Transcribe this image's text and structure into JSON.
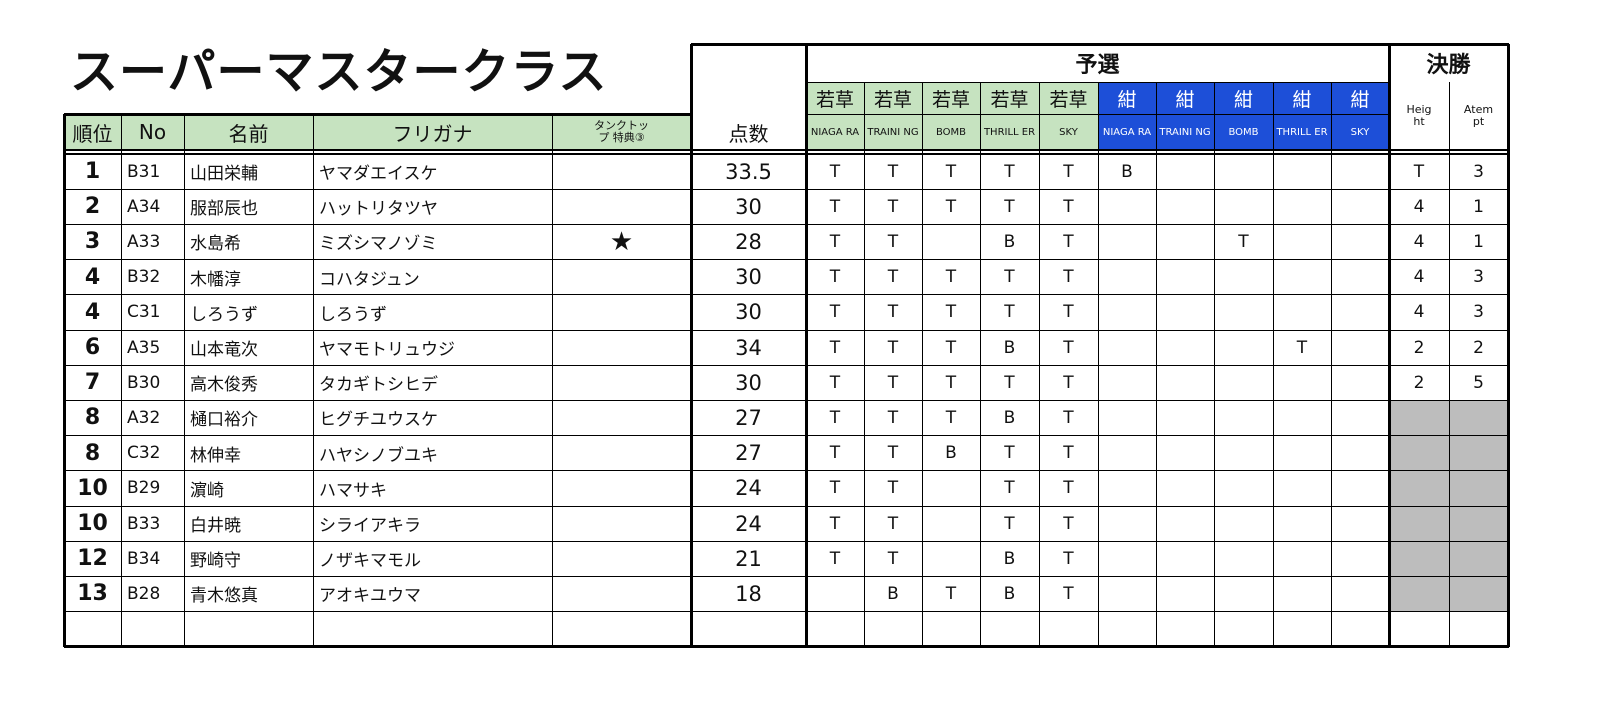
{
  "title": "スーパーマスタークラス",
  "headers": {
    "prelim": "予選",
    "final": "決勝",
    "rank": "順位",
    "no": "No",
    "name": "名前",
    "furigana": "フリガナ",
    "bonus": "タンクトップ 特典③",
    "score": "点数",
    "height": "Heig ht",
    "attempt": "Atem pt"
  },
  "categories": [
    {
      "label": "若草",
      "sub": "NIAGA RA",
      "color": "green"
    },
    {
      "label": "若草",
      "sub": "TRAINI NG",
      "color": "green"
    },
    {
      "label": "若草",
      "sub": "BOMB",
      "color": "green"
    },
    {
      "label": "若草",
      "sub": "THRILL ER",
      "color": "green"
    },
    {
      "label": "若草",
      "sub": "SKY",
      "color": "green"
    },
    {
      "label": "紺",
      "sub": "NIAGA RA",
      "color": "blue"
    },
    {
      "label": "紺",
      "sub": "TRAINI NG",
      "color": "blue"
    },
    {
      "label": "紺",
      "sub": "BOMB",
      "color": "blue"
    },
    {
      "label": "紺",
      "sub": "THRILL ER",
      "color": "blue"
    },
    {
      "label": "紺",
      "sub": "SKY",
      "color": "blue"
    }
  ],
  "rows": [
    {
      "rank": "1",
      "no": "B31",
      "name": "山田栄輔",
      "kana": "ヤマダエイスケ",
      "bonus": "",
      "score": "33.5",
      "marks": [
        "T",
        "T",
        "T",
        "T",
        "T",
        "B",
        "",
        "",
        "",
        ""
      ],
      "height": "T",
      "attempt": "3",
      "gray": false
    },
    {
      "rank": "2",
      "no": "A34",
      "name": "服部辰也",
      "kana": "ハットリタツヤ",
      "bonus": "",
      "score": "30",
      "marks": [
        "T",
        "T",
        "T",
        "T",
        "T",
        "",
        "",
        "",
        "",
        ""
      ],
      "height": "4",
      "attempt": "1",
      "gray": false
    },
    {
      "rank": "3",
      "no": "A33",
      "name": "水島希",
      "kana": "ミズシマノゾミ",
      "bonus": "★",
      "score": "28",
      "marks": [
        "T",
        "T",
        "",
        "B",
        "T",
        "",
        "",
        "T",
        "",
        ""
      ],
      "height": "4",
      "attempt": "1",
      "gray": false
    },
    {
      "rank": "4",
      "no": "B32",
      "name": "木幡淳",
      "kana": "コハタジュン",
      "bonus": "",
      "score": "30",
      "marks": [
        "T",
        "T",
        "T",
        "T",
        "T",
        "",
        "",
        "",
        "",
        ""
      ],
      "height": "4",
      "attempt": "3",
      "gray": false
    },
    {
      "rank": "4",
      "no": "C31",
      "name": "しろうず",
      "kana": "しろうず",
      "bonus": "",
      "score": "30",
      "marks": [
        "T",
        "T",
        "T",
        "T",
        "T",
        "",
        "",
        "",
        "",
        ""
      ],
      "height": "4",
      "attempt": "3",
      "gray": false
    },
    {
      "rank": "6",
      "no": "A35",
      "name": "山本竜次",
      "kana": "ヤマモトリュウジ",
      "bonus": "",
      "score": "34",
      "marks": [
        "T",
        "T",
        "T",
        "B",
        "T",
        "",
        "",
        "",
        "T",
        ""
      ],
      "height": "2",
      "attempt": "2",
      "gray": false
    },
    {
      "rank": "7",
      "no": "B30",
      "name": "高木俊秀",
      "kana": "タカギトシヒデ",
      "bonus": "",
      "score": "30",
      "marks": [
        "T",
        "T",
        "T",
        "T",
        "T",
        "",
        "",
        "",
        "",
        ""
      ],
      "height": "2",
      "attempt": "5",
      "gray": false
    },
    {
      "rank": "8",
      "no": "A32",
      "name": "樋口裕介",
      "kana": "ヒグチユウスケ",
      "bonus": "",
      "score": "27",
      "marks": [
        "T",
        "T",
        "T",
        "B",
        "T",
        "",
        "",
        "",
        "",
        ""
      ],
      "height": "",
      "attempt": "",
      "gray": true
    },
    {
      "rank": "8",
      "no": "C32",
      "name": "林伸幸",
      "kana": "ハヤシノブユキ",
      "bonus": "",
      "score": "27",
      "marks": [
        "T",
        "T",
        "B",
        "T",
        "T",
        "",
        "",
        "",
        "",
        ""
      ],
      "height": "",
      "attempt": "",
      "gray": true
    },
    {
      "rank": "10",
      "no": "B29",
      "name": "濵崎",
      "kana": "ハマサキ",
      "bonus": "",
      "score": "24",
      "marks": [
        "T",
        "T",
        "",
        "T",
        "T",
        "",
        "",
        "",
        "",
        ""
      ],
      "height": "",
      "attempt": "",
      "gray": true
    },
    {
      "rank": "10",
      "no": "B33",
      "name": "白井暁",
      "kana": "シライアキラ",
      "bonus": "",
      "score": "24",
      "marks": [
        "T",
        "T",
        "",
        "T",
        "T",
        "",
        "",
        "",
        "",
        ""
      ],
      "height": "",
      "attempt": "",
      "gray": true
    },
    {
      "rank": "12",
      "no": "B34",
      "name": "野崎守",
      "kana": "ノザキマモル",
      "bonus": "",
      "score": "21",
      "marks": [
        "T",
        "T",
        "",
        "B",
        "T",
        "",
        "",
        "",
        "",
        ""
      ],
      "height": "",
      "attempt": "",
      "gray": true
    },
    {
      "rank": "13",
      "no": "B28",
      "name": "青木悠真",
      "kana": "アオキユウマ",
      "bonus": "",
      "score": "18",
      "marks": [
        "",
        "B",
        "T",
        "B",
        "T",
        "",
        "",
        "",
        "",
        ""
      ],
      "height": "",
      "attempt": "",
      "gray": true
    },
    {
      "rank": "",
      "no": "",
      "name": "",
      "kana": "",
      "bonus": "",
      "score": "",
      "marks": [
        "",
        "",
        "",
        "",
        "",
        "",
        "",
        "",
        "",
        ""
      ],
      "height": "",
      "attempt": "",
      "gray": false
    }
  ]
}
